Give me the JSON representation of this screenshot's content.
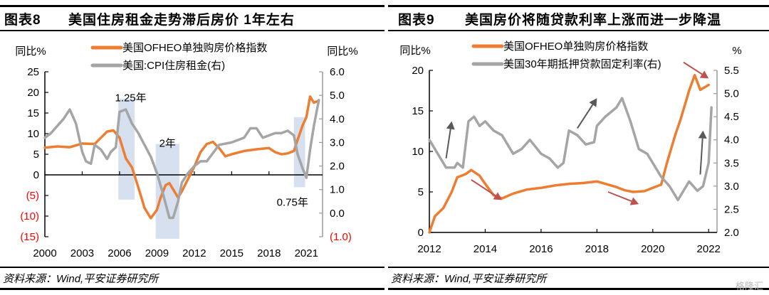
{
  "panels": [
    {
      "figure_label": "图表8",
      "title": "美国住房租金走势滞后房价 1年左右",
      "source": "资料来源：Wind,平安证券研究所"
    },
    {
      "figure_label": "图表9",
      "title": "美国房价将随贷款利率上涨而进一步降温",
      "source": "资料来源：Wind,平安证券研究所"
    }
  ],
  "watermark": "格隆汇",
  "colors": {
    "orange": "#ED7D31",
    "gray": "#A5A5A5",
    "band": "#C9D6EA",
    "red_arrow": "#C0504D",
    "gray_arrow": "#595959",
    "negative_label": "#FF0000"
  },
  "chart_data": [
    {
      "type": "line",
      "title": "美国住房租金走势滞后房价 1年左右",
      "left_axis_label": "同比%",
      "right_axis_label": "同比%",
      "ylim_left": [
        -15,
        25
      ],
      "ylim_right": [
        -1.0,
        6.0
      ],
      "y_ticks_left": [
        "25",
        "20",
        "15",
        "10",
        "5",
        "0",
        "(5)",
        "(10)",
        "(15)"
      ],
      "y_ticks_left_values": [
        25,
        20,
        15,
        10,
        5,
        0,
        -5,
        -10,
        -15
      ],
      "y_ticks_right": [
        "6.0",
        "5.0",
        "4.0",
        "3.0",
        "2.0",
        "1.0",
        "0.0",
        "(1.0)"
      ],
      "y_ticks_right_values": [
        6,
        5,
        4,
        3,
        2,
        1,
        0,
        -1
      ],
      "xlim": [
        2000,
        2022.3
      ],
      "x_ticks": [
        "2000",
        "2003",
        "2006",
        "2009",
        "2012",
        "2015",
        "2018",
        "2021"
      ],
      "x_tick_values": [
        2000,
        2003,
        2006,
        2009,
        2012,
        2015,
        2018,
        2021
      ],
      "legend": [
        "美国OFHEO单独购房价格指数",
        "美国:CPI住房租金(右)"
      ],
      "legend_position": "top-center",
      "series": [
        {
          "name": "美国OFHEO单独购房价格指数",
          "axis": "left",
          "color": "#ED7D31",
          "x": [
            2000,
            2001,
            2002,
            2003,
            2004,
            2004.5,
            2005,
            2005.5,
            2006,
            2006.5,
            2007,
            2007.5,
            2008,
            2008.5,
            2009,
            2009.3,
            2009.7,
            2010,
            2010.3,
            2010.7,
            2011,
            2011.5,
            2012,
            2012.5,
            2013,
            2013.5,
            2014,
            2014.5,
            2015,
            2016,
            2017,
            2018,
            2018.5,
            2019,
            2019.5,
            2020,
            2020.3,
            2020.7,
            2021,
            2021.3,
            2021.6,
            2022
          ],
          "y": [
            6.6,
            6.9,
            6.7,
            7.6,
            7.5,
            9.0,
            10.5,
            10.8,
            9.0,
            4.0,
            1.8,
            -3.0,
            -8.0,
            -10.5,
            -8.5,
            -5.5,
            -2.5,
            -2.0,
            -3.5,
            -5.5,
            -4.0,
            -1.0,
            2.0,
            5.5,
            7.5,
            8.0,
            6.5,
            4.5,
            5.0,
            5.8,
            6.2,
            6.5,
            5.5,
            5.0,
            5.2,
            5.8,
            8.5,
            12.0,
            14.0,
            19.0,
            17.5,
            18.0
          ]
        },
        {
          "name": "美国:CPI住房租金(右)",
          "axis": "right",
          "color": "#A5A5A5",
          "x": [
            2000,
            2000.5,
            2001,
            2001.5,
            2002,
            2002.5,
            2003,
            2003.3,
            2003.7,
            2004,
            2004.5,
            2005,
            2005.3,
            2005.7,
            2006,
            2006.5,
            2007,
            2007.5,
            2008,
            2008.5,
            2009,
            2009.5,
            2010,
            2010.3,
            2010.7,
            2011,
            2011.5,
            2012,
            2012.5,
            2013,
            2014,
            2015,
            2016,
            2016.5,
            2017,
            2017.5,
            2018,
            2018.5,
            2019,
            2019.5,
            2020,
            2020.3,
            2020.7,
            2021,
            2021.3,
            2021.6,
            2022
          ],
          "y": [
            3.2,
            3.4,
            3.7,
            4.0,
            4.4,
            3.8,
            2.6,
            2.2,
            2.1,
            2.9,
            2.7,
            2.3,
            2.6,
            2.8,
            4.3,
            4.4,
            3.8,
            3.4,
            2.9,
            2.4,
            1.7,
            0.8,
            -0.2,
            -0.2,
            0.5,
            1.3,
            1.7,
            2.0,
            2.2,
            2.2,
            2.9,
            3.0,
            3.2,
            3.6,
            3.6,
            3.2,
            3.3,
            3.4,
            3.4,
            3.5,
            3.3,
            2.5,
            1.9,
            1.5,
            2.7,
            3.7,
            4.8
          ]
        }
      ],
      "shaded_periods": [
        {
          "x0": 2005.9,
          "x1": 2007.2,
          "label": "1.25年",
          "y_top": 18.5,
          "y_bottom": -6
        },
        {
          "x0": 2008.9,
          "x1": 2010.8,
          "label": "2年",
          "y_top": 7.5,
          "y_bottom": -15.5
        },
        {
          "x0": 2020.0,
          "x1": 2020.9,
          "label": "0.75年",
          "y_top": 14,
          "y_bottom": -3
        }
      ]
    },
    {
      "type": "line",
      "title": "美国房价将随贷款利率上涨而进一步降温",
      "left_axis_label": "同比%",
      "right_axis_label": "%",
      "ylim_left": [
        0,
        20
      ],
      "ylim_right": [
        2.0,
        5.5
      ],
      "y_ticks_left": [
        "20",
        "15",
        "10",
        "5",
        "0"
      ],
      "y_ticks_left_values": [
        20,
        15,
        10,
        5,
        0
      ],
      "y_ticks_right": [
        "5.5",
        "5.0",
        "4.5",
        "4.0",
        "3.5",
        "3.0",
        "2.5",
        "2.0"
      ],
      "y_ticks_right_values": [
        5.5,
        5.0,
        4.5,
        4.0,
        3.5,
        3.0,
        2.5,
        2.0
      ],
      "xlim": [
        2012,
        2022.3
      ],
      "x_ticks": [
        "2012",
        "2014",
        "2016",
        "2018",
        "2020",
        "2022"
      ],
      "x_tick_values": [
        2012,
        2014,
        2016,
        2018,
        2020,
        2022
      ],
      "legend": [
        "美国OFHEO单独购房价格指数",
        "美国30年期抵押贷款固定利率(右)"
      ],
      "legend_position": "top-center",
      "series": [
        {
          "name": "美国OFHEO单独购房价格指数",
          "axis": "left",
          "color": "#ED7D31",
          "x": [
            2012,
            2012.2,
            2012.5,
            2012.8,
            2013,
            2013.3,
            2013.5,
            2013.8,
            2014,
            2014.3,
            2014.6,
            2015,
            2015.5,
            2016,
            2016.5,
            2017,
            2017.5,
            2018,
            2018.3,
            2018.7,
            2019,
            2019.3,
            2019.7,
            2020,
            2020.3,
            2020.5,
            2020.8,
            2021,
            2021.3,
            2021.5,
            2021.7,
            2022
          ],
          "y": [
            0,
            2,
            3,
            5,
            6.8,
            7.2,
            7.7,
            7.0,
            6.0,
            4.6,
            4.2,
            4.8,
            5.3,
            5.5,
            5.8,
            6.0,
            6.1,
            6.3,
            6.0,
            5.6,
            5.2,
            5.0,
            5.1,
            5.5,
            5.9,
            8.5,
            12.0,
            14.0,
            17.5,
            19.4,
            17.6,
            18.2
          ]
        },
        {
          "name": "美国30年期抵押贷款固定利率(右)",
          "axis": "right",
          "color": "#A5A5A5",
          "x": [
            2012,
            2012.3,
            2012.6,
            2012.9,
            2013,
            2013.2,
            2013.4,
            2013.6,
            2013.8,
            2014,
            2014.3,
            2014.6,
            2015,
            2015.3,
            2015.6,
            2016,
            2016.3,
            2016.6,
            2016.8,
            2017,
            2017.3,
            2017.6,
            2017.9,
            2018,
            2018.3,
            2018.7,
            2018.9,
            2019.2,
            2019.5,
            2019.8,
            2020,
            2020.3,
            2020.6,
            2020.9,
            2021,
            2021.3,
            2021.6,
            2021.8,
            2022,
            2022.1
          ],
          "y": [
            4.0,
            3.7,
            3.4,
            3.4,
            3.5,
            3.4,
            4.4,
            4.5,
            4.3,
            4.4,
            4.2,
            4.1,
            3.7,
            3.8,
            4.0,
            3.7,
            3.6,
            3.4,
            3.5,
            4.2,
            4.1,
            3.9,
            3.95,
            4.3,
            4.5,
            4.7,
            4.9,
            4.4,
            3.8,
            3.7,
            3.5,
            3.2,
            3.0,
            2.7,
            2.8,
            3.1,
            2.9,
            3.0,
            3.5,
            4.7
          ]
        }
      ],
      "arrows": [
        {
          "series_axis": "right",
          "direction": "up",
          "color": "gray",
          "from": [
            2012.6,
            3.6
          ],
          "to": [
            2012.8,
            4.4
          ]
        },
        {
          "series_axis": "left",
          "direction": "down",
          "color": "red",
          "from": [
            2013.5,
            6.5
          ],
          "to": [
            2014.6,
            4.0
          ]
        },
        {
          "series_axis": "right",
          "direction": "up",
          "color": "gray",
          "from": [
            2017.3,
            4.25
          ],
          "to": [
            2018.0,
            4.9
          ]
        },
        {
          "series_axis": "left",
          "direction": "down",
          "color": "red",
          "from": [
            2018.4,
            5.0
          ],
          "to": [
            2019.5,
            3.5
          ]
        },
        {
          "series_axis": "left",
          "direction": "down",
          "color": "red",
          "from": [
            2021.1,
            21.0
          ],
          "to": [
            2022.0,
            19.0
          ]
        },
        {
          "series_axis": "right",
          "direction": "up",
          "color": "gray",
          "from": [
            2021.7,
            3.25
          ],
          "to": [
            2021.8,
            4.2
          ]
        }
      ]
    }
  ]
}
